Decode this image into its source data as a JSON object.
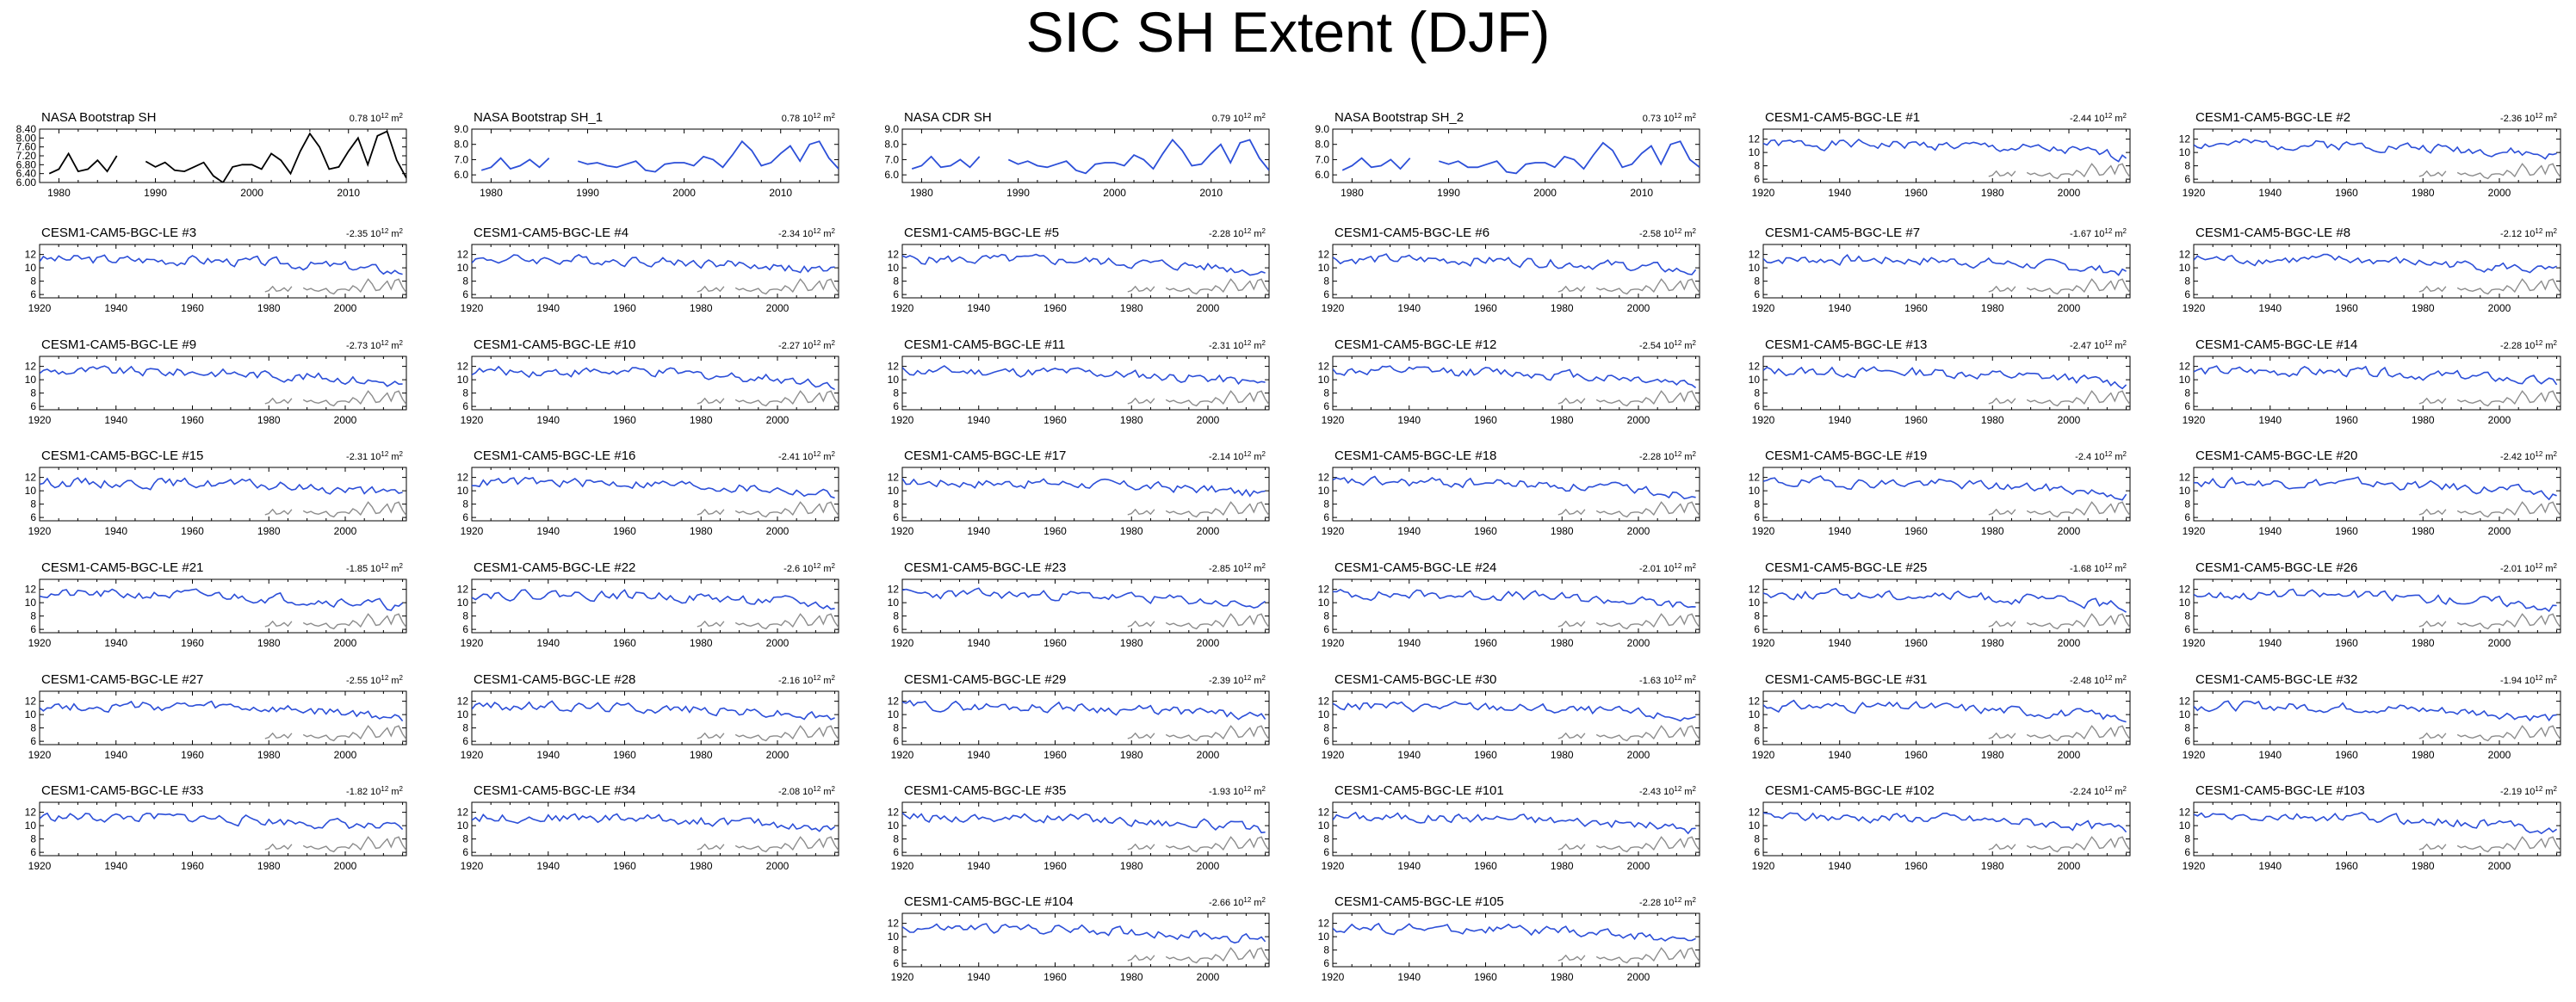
{
  "page": {
    "title": "SIC SH Extent (DJF)",
    "colors": {
      "observation": "#000000",
      "model": "#2c4fd8",
      "overlay": "#8c8c8c",
      "axis": "#000000"
    }
  },
  "chart_data": [
    {
      "type": "line",
      "name": "NASA Bootstrap SH",
      "trend": "0.78",
      "units": "10 12 m2",
      "style": "obs",
      "xlim": [
        1978,
        2016
      ],
      "ylim": [
        6.0,
        8.4
      ],
      "xticks": [
        1980,
        1990,
        2000,
        2010
      ],
      "yticks": [
        6.0,
        6.4,
        6.8,
        7.2,
        7.6,
        8.0,
        8.4
      ],
      "ytick_labels": [
        "6.00",
        "6.40",
        "6.80",
        "7.20",
        "7.60",
        "8.00",
        "8.40"
      ],
      "x": [
        1979,
        1980,
        1981,
        1982,
        1983,
        1984,
        1985,
        1986,
        1987,
        1988,
        1989,
        1990,
        1991,
        1992,
        1993,
        1994,
        1995,
        1996,
        1997,
        1998,
        1999,
        2000,
        2001,
        2002,
        2003,
        2004,
        2005,
        2006,
        2007,
        2008,
        2009,
        2010,
        2011,
        2012,
        2013,
        2014,
        2015,
        2016
      ],
      "y": [
        6.4,
        6.6,
        7.3,
        6.5,
        6.6,
        7.0,
        6.5,
        7.2,
        null,
        null,
        6.95,
        6.7,
        6.9,
        6.55,
        6.5,
        6.7,
        6.9,
        6.3,
        6.0,
        6.7,
        6.8,
        6.8,
        6.6,
        7.3,
        7.0,
        6.4,
        7.4,
        8.2,
        7.6,
        6.6,
        6.7,
        7.4,
        8.0,
        6.8,
        8.1,
        8.3,
        7.0,
        6.2
      ]
    },
    {
      "type": "line",
      "name": "NASA Bootstrap SH_1",
      "trend": "0.78",
      "units": "10 12 m2",
      "style": "model",
      "xlim": [
        1978,
        2016
      ],
      "ylim": [
        5.5,
        9.0
      ],
      "xticks": [
        1980,
        1990,
        2000,
        2010
      ],
      "yticks": [
        6.0,
        7.0,
        8.0,
        9.0
      ],
      "ytick_labels": [
        "6.0",
        "7.0",
        "8.0",
        "9.0"
      ],
      "x": [
        1979,
        1980,
        1981,
        1982,
        1983,
        1984,
        1985,
        1986,
        1987,
        1988,
        1989,
        1990,
        1991,
        1992,
        1993,
        1994,
        1995,
        1996,
        1997,
        1998,
        1999,
        2000,
        2001,
        2002,
        2003,
        2004,
        2005,
        2006,
        2007,
        2008,
        2009,
        2010,
        2011,
        2012,
        2013,
        2014,
        2015,
        2016
      ],
      "y": [
        6.3,
        6.5,
        7.1,
        6.4,
        6.6,
        7.0,
        6.5,
        7.1,
        null,
        null,
        6.9,
        6.7,
        6.8,
        6.6,
        6.5,
        6.7,
        6.9,
        6.3,
        6.2,
        6.7,
        6.8,
        6.8,
        6.6,
        7.2,
        7.0,
        6.5,
        7.3,
        8.2,
        7.6,
        6.6,
        6.8,
        7.4,
        7.9,
        6.9,
        8.0,
        8.2,
        7.1,
        6.4
      ]
    },
    {
      "type": "line",
      "name": "NASA CDR SH",
      "trend": "0.79",
      "units": "10 12 m2",
      "style": "model",
      "xlim": [
        1978,
        2016
      ],
      "ylim": [
        5.5,
        9.0
      ],
      "xticks": [
        1980,
        1990,
        2000,
        2010
      ],
      "yticks": [
        6.0,
        7.0,
        8.0,
        9.0
      ],
      "ytick_labels": [
        "6.0",
        "7.0",
        "8.0",
        "9.0"
      ],
      "x": [
        1979,
        1980,
        1981,
        1982,
        1983,
        1984,
        1985,
        1986,
        1987,
        1988,
        1989,
        1990,
        1991,
        1992,
        1993,
        1994,
        1995,
        1996,
        1997,
        1998,
        1999,
        2000,
        2001,
        2002,
        2003,
        2004,
        2005,
        2006,
        2007,
        2008,
        2009,
        2010,
        2011,
        2012,
        2013,
        2014,
        2015,
        2016
      ],
      "y": [
        6.4,
        6.6,
        7.2,
        6.5,
        6.6,
        7.0,
        6.5,
        7.2,
        null,
        null,
        7.0,
        6.7,
        6.9,
        6.6,
        6.5,
        6.7,
        6.9,
        6.3,
        6.1,
        6.7,
        6.8,
        6.8,
        6.6,
        7.3,
        7.0,
        6.4,
        7.4,
        8.3,
        7.6,
        6.6,
        6.7,
        7.4,
        8.0,
        6.8,
        8.1,
        8.3,
        7.1,
        6.3
      ]
    },
    {
      "type": "line",
      "name": "NASA Bootstrap SH_2",
      "trend": "0.73",
      "units": "10 12 m2",
      "style": "model",
      "xlim": [
        1978,
        2016
      ],
      "ylim": [
        5.5,
        9.0
      ],
      "xticks": [
        1980,
        1990,
        2000,
        2010
      ],
      "yticks": [
        6.0,
        7.0,
        8.0,
        9.0
      ],
      "ytick_labels": [
        "6.0",
        "7.0",
        "8.0",
        "9.0"
      ],
      "x": [
        1979,
        1980,
        1981,
        1982,
        1983,
        1984,
        1985,
        1986,
        1987,
        1988,
        1989,
        1990,
        1991,
        1992,
        1993,
        1994,
        1995,
        1996,
        1997,
        1998,
        1999,
        2000,
        2001,
        2002,
        2003,
        2004,
        2005,
        2006,
        2007,
        2008,
        2009,
        2010,
        2011,
        2012,
        2013,
        2014,
        2015,
        2016
      ],
      "y": [
        6.3,
        6.6,
        7.1,
        6.5,
        6.6,
        7.0,
        6.4,
        7.1,
        null,
        null,
        6.9,
        6.7,
        6.9,
        6.5,
        6.5,
        6.7,
        6.9,
        6.2,
        6.1,
        6.7,
        6.8,
        6.8,
        6.5,
        7.2,
        7.0,
        6.4,
        7.3,
        8.1,
        7.6,
        6.5,
        6.7,
        7.4,
        7.9,
        6.7,
        8.0,
        8.2,
        7.0,
        6.5
      ]
    },
    {
      "type": "line",
      "name": "CESM1-CAM5-BGC-LE #1",
      "trend": "-2.44",
      "units": "10 12 m2",
      "style": "ens",
      "seed": 1
    },
    {
      "type": "line",
      "name": "CESM1-CAM5-BGC-LE #2",
      "trend": "-2.36",
      "units": "10 12 m2",
      "style": "ens",
      "seed": 2
    },
    {
      "type": "line",
      "name": "CESM1-CAM5-BGC-LE #3",
      "trend": "-2.35",
      "units": "10 12 m2",
      "style": "ens",
      "seed": 3
    },
    {
      "type": "line",
      "name": "CESM1-CAM5-BGC-LE #4",
      "trend": "-2.34",
      "units": "10 12 m2",
      "style": "ens",
      "seed": 4
    },
    {
      "type": "line",
      "name": "CESM1-CAM5-BGC-LE #5",
      "trend": "-2.28",
      "units": "10 12 m2",
      "style": "ens",
      "seed": 5
    },
    {
      "type": "line",
      "name": "CESM1-CAM5-BGC-LE #6",
      "trend": "-2.58",
      "units": "10 12 m2",
      "style": "ens",
      "seed": 6
    },
    {
      "type": "line",
      "name": "CESM1-CAM5-BGC-LE #7",
      "trend": "-1.67",
      "units": "10 12 m2",
      "style": "ens",
      "seed": 7
    },
    {
      "type": "line",
      "name": "CESM1-CAM5-BGC-LE #8",
      "trend": "-2.12",
      "units": "10 12 m2",
      "style": "ens",
      "seed": 8
    },
    {
      "type": "line",
      "name": "CESM1-CAM5-BGC-LE #9",
      "trend": "-2.73",
      "units": "10 12 m2",
      "style": "ens",
      "seed": 9
    },
    {
      "type": "line",
      "name": "CESM1-CAM5-BGC-LE #10",
      "trend": "-2.27",
      "units": "10 12 m2",
      "style": "ens",
      "seed": 10
    },
    {
      "type": "line",
      "name": "CESM1-CAM5-BGC-LE #11",
      "trend": "-2.31",
      "units": "10 12 m2",
      "style": "ens",
      "seed": 11
    },
    {
      "type": "line",
      "name": "CESM1-CAM5-BGC-LE #12",
      "trend": "-2.54",
      "units": "10 12 m2",
      "style": "ens",
      "seed": 12
    },
    {
      "type": "line",
      "name": "CESM1-CAM5-BGC-LE #13",
      "trend": "-2.47",
      "units": "10 12 m2",
      "style": "ens",
      "seed": 13
    },
    {
      "type": "line",
      "name": "CESM1-CAM5-BGC-LE #14",
      "trend": "-2.28",
      "units": "10 12 m2",
      "style": "ens",
      "seed": 14
    },
    {
      "type": "line",
      "name": "CESM1-CAM5-BGC-LE #15",
      "trend": "-2.31",
      "units": "10 12 m2",
      "style": "ens",
      "seed": 15
    },
    {
      "type": "line",
      "name": "CESM1-CAM5-BGC-LE #16",
      "trend": "-2.41",
      "units": "10 12 m2",
      "style": "ens",
      "seed": 16
    },
    {
      "type": "line",
      "name": "CESM1-CAM5-BGC-LE #17",
      "trend": "-2.14",
      "units": "10 12 m2",
      "style": "ens",
      "seed": 17
    },
    {
      "type": "line",
      "name": "CESM1-CAM5-BGC-LE #18",
      "trend": "-2.28",
      "units": "10 12 m2",
      "style": "ens",
      "seed": 18
    },
    {
      "type": "line",
      "name": "CESM1-CAM5-BGC-LE #19",
      "trend": "-2.4",
      "units": "10 12 m2",
      "style": "ens",
      "seed": 19
    },
    {
      "type": "line",
      "name": "CESM1-CAM5-BGC-LE #20",
      "trend": "-2.42",
      "units": "10 12 m2",
      "style": "ens",
      "seed": 20
    },
    {
      "type": "line",
      "name": "CESM1-CAM5-BGC-LE #21",
      "trend": "-1.85",
      "units": "10 12 m2",
      "style": "ens",
      "seed": 21
    },
    {
      "type": "line",
      "name": "CESM1-CAM5-BGC-LE #22",
      "trend": "-2.6",
      "units": "10 12 m2",
      "style": "ens",
      "seed": 22
    },
    {
      "type": "line",
      "name": "CESM1-CAM5-BGC-LE #23",
      "trend": "-2.85",
      "units": "10 12 m2",
      "style": "ens",
      "seed": 23
    },
    {
      "type": "line",
      "name": "CESM1-CAM5-BGC-LE #24",
      "trend": "-2.01",
      "units": "10 12 m2",
      "style": "ens",
      "seed": 24
    },
    {
      "type": "line",
      "name": "CESM1-CAM5-BGC-LE #25",
      "trend": "-1.68",
      "units": "10 12 m2",
      "style": "ens",
      "seed": 25
    },
    {
      "type": "line",
      "name": "CESM1-CAM5-BGC-LE #26",
      "trend": "-2.01",
      "units": "10 12 m2",
      "style": "ens",
      "seed": 26
    },
    {
      "type": "line",
      "name": "CESM1-CAM5-BGC-LE #27",
      "trend": "-2.55",
      "units": "10 12 m2",
      "style": "ens",
      "seed": 27
    },
    {
      "type": "line",
      "name": "CESM1-CAM5-BGC-LE #28",
      "trend": "-2.16",
      "units": "10 12 m2",
      "style": "ens",
      "seed": 28
    },
    {
      "type": "line",
      "name": "CESM1-CAM5-BGC-LE #29",
      "trend": "-2.39",
      "units": "10 12 m2",
      "style": "ens",
      "seed": 29
    },
    {
      "type": "line",
      "name": "CESM1-CAM5-BGC-LE #30",
      "trend": "-1.63",
      "units": "10 12 m2",
      "style": "ens",
      "seed": 30
    },
    {
      "type": "line",
      "name": "CESM1-CAM5-BGC-LE #31",
      "trend": "-2.48",
      "units": "10 12 m2",
      "style": "ens",
      "seed": 31
    },
    {
      "type": "line",
      "name": "CESM1-CAM5-BGC-LE #32",
      "trend": "-1.94",
      "units": "10 12 m2",
      "style": "ens",
      "seed": 32
    },
    {
      "type": "line",
      "name": "CESM1-CAM5-BGC-LE #33",
      "trend": "-1.82",
      "units": "10 12 m2",
      "style": "ens",
      "seed": 33
    },
    {
      "type": "line",
      "name": "CESM1-CAM5-BGC-LE #34",
      "trend": "-2.08",
      "units": "10 12 m2",
      "style": "ens",
      "seed": 34
    },
    {
      "type": "line",
      "name": "CESM1-CAM5-BGC-LE #35",
      "trend": "-1.93",
      "units": "10 12 m2",
      "style": "ens",
      "seed": 35
    },
    {
      "type": "line",
      "name": "CESM1-CAM5-BGC-LE #101",
      "trend": "-2.43",
      "units": "10 12 m2",
      "style": "ens",
      "seed": 101
    },
    {
      "type": "line",
      "name": "CESM1-CAM5-BGC-LE #102",
      "trend": "-2.24",
      "units": "10 12 m2",
      "style": "ens",
      "seed": 102
    },
    {
      "type": "line",
      "name": "CESM1-CAM5-BGC-LE #103",
      "trend": "-2.19",
      "units": "10 12 m2",
      "style": "ens",
      "seed": 103
    },
    {
      "type": "line",
      "name": "CESM1-CAM5-BGC-LE #104",
      "trend": "-2.66",
      "units": "10 12 m2",
      "style": "ens",
      "seed": 104
    },
    {
      "type": "line",
      "name": "CESM1-CAM5-BGC-LE #105",
      "trend": "-2.28",
      "units": "10 12 m2",
      "style": "ens",
      "seed": 105
    }
  ],
  "ensemble_axes": {
    "xlim": [
      1920,
      2016
    ],
    "ylim": [
      5.5,
      13.5
    ],
    "xticks": [
      1920,
      1940,
      1960,
      1980,
      2000
    ],
    "yticks": [
      6,
      8,
      10,
      12
    ],
    "ytick_labels": [
      "6",
      "8",
      "10",
      "12"
    ]
  },
  "ensemble_overlay": {
    "note": "observed series repeated in grey",
    "x": [
      1979,
      1980,
      1981,
      1982,
      1983,
      1984,
      1985,
      1986,
      1987,
      1988,
      1989,
      1990,
      1991,
      1992,
      1993,
      1994,
      1995,
      1996,
      1997,
      1998,
      1999,
      2000,
      2001,
      2002,
      2003,
      2004,
      2005,
      2006,
      2007,
      2008,
      2009,
      2010,
      2011,
      2012,
      2013,
      2014,
      2015,
      2016
    ],
    "y": [
      6.4,
      6.6,
      7.2,
      6.5,
      6.6,
      7.0,
      6.5,
      7.2,
      null,
      null,
      7.0,
      6.7,
      6.9,
      6.6,
      6.5,
      6.7,
      6.9,
      6.3,
      6.1,
      6.7,
      6.8,
      6.8,
      6.6,
      7.3,
      7.0,
      6.4,
      7.4,
      8.3,
      7.6,
      6.6,
      6.7,
      7.4,
      8.0,
      6.8,
      8.1,
      8.3,
      7.1,
      6.3
    ]
  }
}
